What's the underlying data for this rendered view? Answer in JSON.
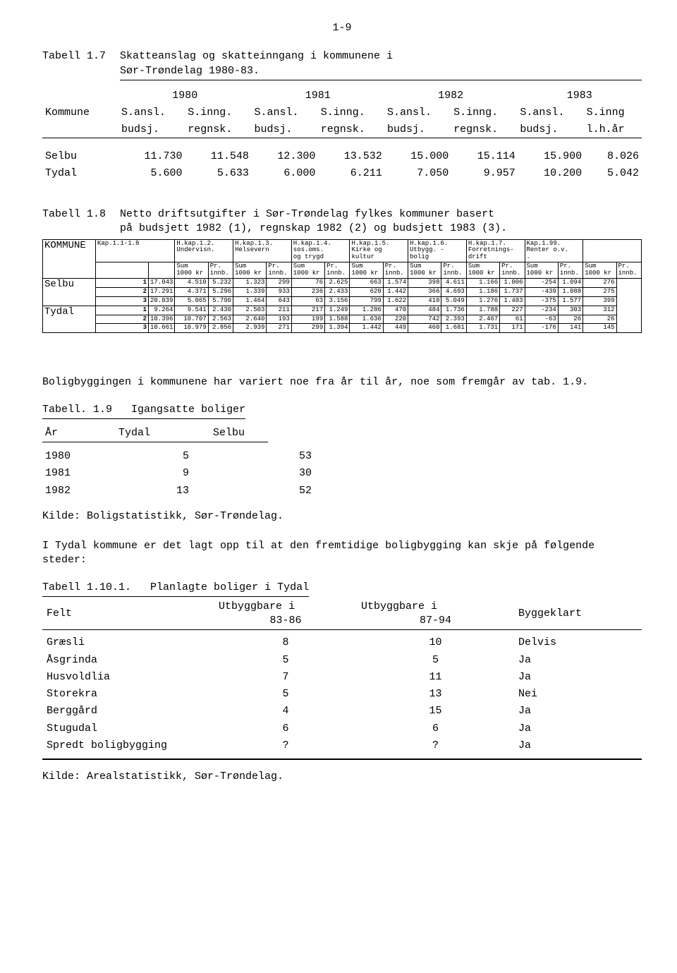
{
  "page_number": "1-9",
  "tab17": {
    "label": "Tabell 1.7",
    "title_l1": "Skatteanslag og skatteinngang i kommunene i",
    "title_l2": "Sør-Trøndelag 1980-83.",
    "years": [
      "1980",
      "1981",
      "1982",
      "1983"
    ],
    "head_kommune": "Kommune",
    "head_row": [
      "S.ansl.",
      "S.inng.",
      "S.ansl.",
      "S.inng.",
      "S.ansl.",
      "S.inng.",
      "S.ansl.",
      "S.inng"
    ],
    "head_row2": [
      "budsj.",
      "regnsk.",
      "budsj.",
      "regnsk.",
      "budsj.",
      "regnsk.",
      "budsj.",
      "l.h.år"
    ],
    "rows": [
      {
        "k": "Selbu",
        "v": [
          "11.730",
          "11.548",
          "12.300",
          "13.532",
          "15.000",
          "15.114",
          "15.900",
          "8.026"
        ]
      },
      {
        "k": "Tydal",
        "v": [
          "5.600",
          "5.633",
          "6.000",
          "6.211",
          "7.050",
          "9.957",
          "10.200",
          "5.042"
        ]
      }
    ]
  },
  "tab18": {
    "label": "Tabell 1.8",
    "title_l1": "Netto driftsutgifter i Sør-Trøndelag fylkes kommuner basert",
    "title_l2": "på budsjett 1982 (1), regnskap 1982 (2) og budsjett 1983 (3).",
    "h_kommune": "KOMMUNE",
    "cols": [
      "Kap.1.1-1.8",
      "H.kap.1.2.\nUndervisn.",
      "H.kap.1.3.\nHelsevern",
      "H.kap.1.4.\nsos.oms.\nog trygd",
      "H.kap.1.5.\nKirke og\nkultur",
      "H.kap.1.6.\nUtbygg. -\nbolig",
      "H.kap.1.7.\nForretnings-\ndrift",
      "Kap.1.99.\nRenter o.v.\n."
    ],
    "sub": [
      "Sum\n1000 kr",
      "Pr.\ninnb.",
      "Sum\n1000 kr",
      "Pr.\ninnb.",
      "Sum\n1000 kr",
      "Pr.\ninnb.",
      "Sum\n1000 kr",
      "Pr.\ninnb.",
      "Sum\n1000 kr",
      "Pr.\ninnb.",
      "Sum\n1000 kr",
      "Pr.\ninnb.",
      "Sum\n1000 kr",
      "Pr.\ninnb.",
      "Sum\n1000 kr",
      "Pr.\ninnb."
    ],
    "rows": [
      {
        "k": "Selbu",
        "n": "1",
        "v": [
          "17.043",
          "4.510",
          "5.232",
          "1.323",
          "299",
          "76",
          "2.625",
          "663",
          "1.574",
          "398",
          "4.611",
          "1.166",
          "1.006",
          "-254",
          "1.094",
          "276"
        ]
      },
      {
        "k": "",
        "n": "2",
        "v": [
          "17.291",
          "4.371",
          "5.296",
          "1.339",
          "933",
          "236",
          "2.433",
          "620",
          "1.442",
          "366",
          "4.693",
          "1.186",
          "1.737",
          "-439",
          "1.088",
          "275"
        ]
      },
      {
        "k": "",
        "n": "3",
        "v": [
          "20.039",
          "5.065",
          "5.790",
          "1.464",
          "643",
          " 63",
          "3.156",
          "799",
          "1.622",
          "410",
          "5.049",
          "1.276",
          "1.483",
          "-375",
          "1.577",
          "399"
        ]
      },
      {
        "k": "Tydal",
        "n": "1",
        "v": [
          "9.264",
          "9.541",
          "2.430",
          "2.503",
          "211",
          "217",
          "1.249",
          "1.286",
          "470",
          "484",
          "1.736",
          "1.788",
          "227",
          "-234",
          "303",
          "312"
        ]
      },
      {
        "k": "",
        "n": "2",
        "v": [
          "10.396",
          "10.707",
          "2.563",
          "2.640",
          "193",
          "199",
          "1.588",
          "1.636",
          "220",
          "742",
          "2.393",
          "2.467",
          "61",
          "-63",
          "26",
          "26"
        ]
      },
      {
        "k": "",
        "n": "3",
        "v": [
          "10.661",
          "10.979",
          "2.856",
          "2.939",
          "271",
          "299",
          "1.394",
          "1.442",
          "449",
          "460",
          "1.681",
          "1.731",
          "171",
          "-176",
          "141",
          "145"
        ]
      }
    ]
  },
  "para_boliger": "Boligbyggingen i kommunene har variert noe fra år til år, noe som fremgår av tab. 1.9.",
  "tab19": {
    "label": "Tabell. 1.9",
    "title": "Igangsatte boliger",
    "head": [
      "År",
      "Tydal",
      "Selbu"
    ],
    "rows": [
      [
        "1980",
        "5",
        "53"
      ],
      [
        "1981",
        "9",
        "30"
      ],
      [
        "1982",
        "13",
        "52"
      ]
    ],
    "kilde": "Kilde: Boligstatistikk, Sør-Trøndelag."
  },
  "para_tydal": "I Tydal kommune er det lagt opp til at den fremtidige boligbygging kan skje på følgende steder:",
  "tab110": {
    "label": "Tabell 1.10.1.",
    "title": "Planlagte boliger i Tydal",
    "head": [
      "Felt",
      "Utbyggbare i\n83-86",
      "Utbyggbare i\n87-94",
      "Byggeklart"
    ],
    "rows": [
      [
        "Græsli",
        "8",
        "10",
        "Delvis"
      ],
      [
        "Åsgrinda",
        "5",
        "5",
        "Ja"
      ],
      [
        "Husvoldlia",
        "7",
        "11",
        "Ja"
      ],
      [
        "Storekra",
        "5",
        "13",
        "Nei"
      ],
      [
        "Berggård",
        "4",
        "15",
        "Ja"
      ],
      [
        "Stugudal",
        "6",
        "6",
        "Ja"
      ],
      [
        "Spredt boligbygging",
        "?",
        "?",
        "Ja"
      ]
    ],
    "kilde": "Kilde: Arealstatistikk, Sør-Trøndelag."
  }
}
